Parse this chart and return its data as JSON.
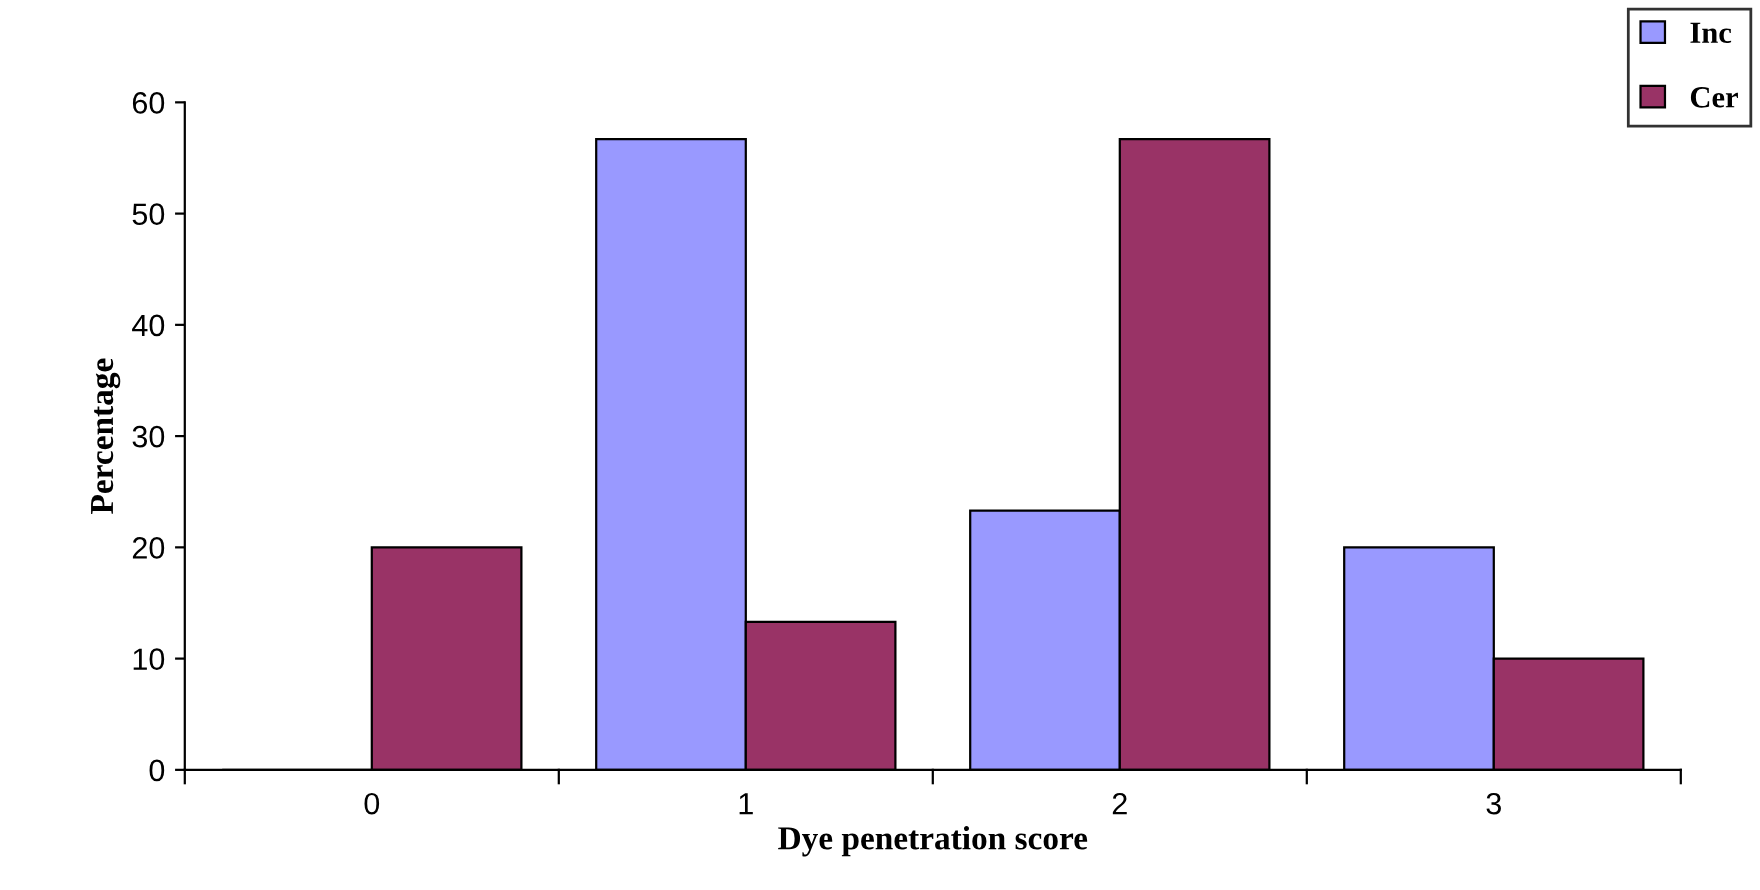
{
  "chart_data": {
    "type": "bar",
    "xlabel": "Dye penetration score",
    "ylabel": "Percentage",
    "categories": [
      "0",
      "1",
      "2",
      "3"
    ],
    "series": [
      {
        "name": "Inc",
        "color": "#9999ff",
        "values": [
          0,
          56.7,
          23.3,
          20
        ]
      },
      {
        "name": "Cer",
        "color": "#993366",
        "values": [
          20,
          13.3,
          56.7,
          10
        ]
      }
    ],
    "ylim": [
      0,
      60
    ],
    "yticks": [
      0,
      10,
      20,
      30,
      40,
      50,
      60
    ],
    "grid": false,
    "legend": "top right"
  }
}
